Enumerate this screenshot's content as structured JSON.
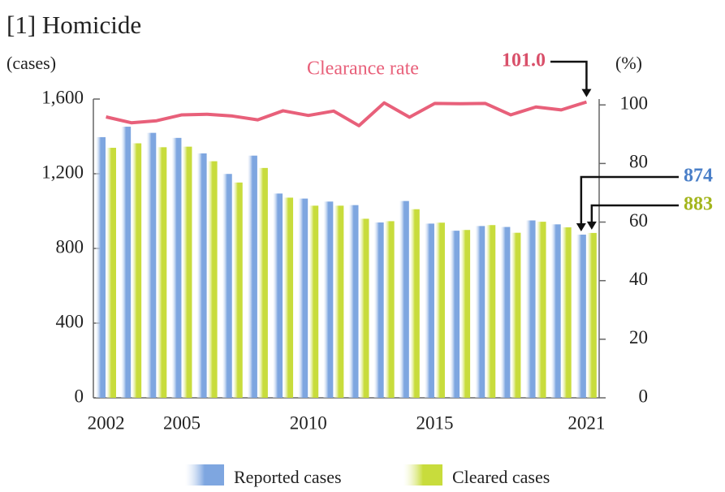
{
  "chart_data": {
    "type": "bar",
    "title": "[1] Homicide",
    "y_label": "(cases)",
    "y2_label": "(%)",
    "categories": [
      "2002",
      null,
      null,
      "2005",
      null,
      null,
      null,
      null,
      "2010",
      null,
      null,
      null,
      null,
      "2015",
      null,
      null,
      null,
      null,
      null,
      "2021"
    ],
    "series": [
      {
        "name": "Reported cases",
        "color": "#7ea6e0",
        "values": [
          1396,
          1452,
          1419,
          1392,
          1309,
          1199,
          1297,
          1094,
          1067,
          1051,
          1032,
          939,
          1054,
          933,
          895,
          920,
          915,
          950,
          929,
          874
        ]
      },
      {
        "name": "Cleared cases",
        "color": "#c8dc3c",
        "values": [
          1339,
          1363,
          1342,
          1345,
          1267,
          1153,
          1231,
          1072,
          1029,
          1029,
          959,
          946,
          1010,
          938,
          899,
          925,
          884,
          943,
          913,
          883
        ]
      },
      {
        "name": "Clearance rate",
        "type": "line",
        "axis": "y2",
        "color": "#e8607a",
        "values": [
          95.9,
          93.9,
          94.6,
          96.6,
          96.8,
          96.2,
          94.9,
          98.0,
          96.4,
          97.9,
          92.9,
          100.7,
          95.8,
          100.5,
          100.4,
          100.5,
          96.6,
          99.3,
          98.3,
          101.0
        ],
        "value_labels": [
          null,
          null,
          null,
          null,
          null,
          null,
          null,
          null,
          null,
          null,
          null,
          null,
          null,
          null,
          null,
          null,
          null,
          null,
          null,
          "101.0"
        ]
      }
    ],
    "label_colors": [
      "#4a7fc8",
      "#a3b51c",
      "#d9506a"
    ],
    "ylim": [
      0,
      1600
    ],
    "yticks": [
      0,
      400,
      800,
      {
        "value": 1200,
        "label": "1,200"
      },
      {
        "value": 1600,
        "label": "1,600"
      }
    ],
    "y2lim": [
      0,
      102
    ],
    "y2ticks": [
      0,
      20,
      40,
      60,
      80,
      100
    ]
  }
}
